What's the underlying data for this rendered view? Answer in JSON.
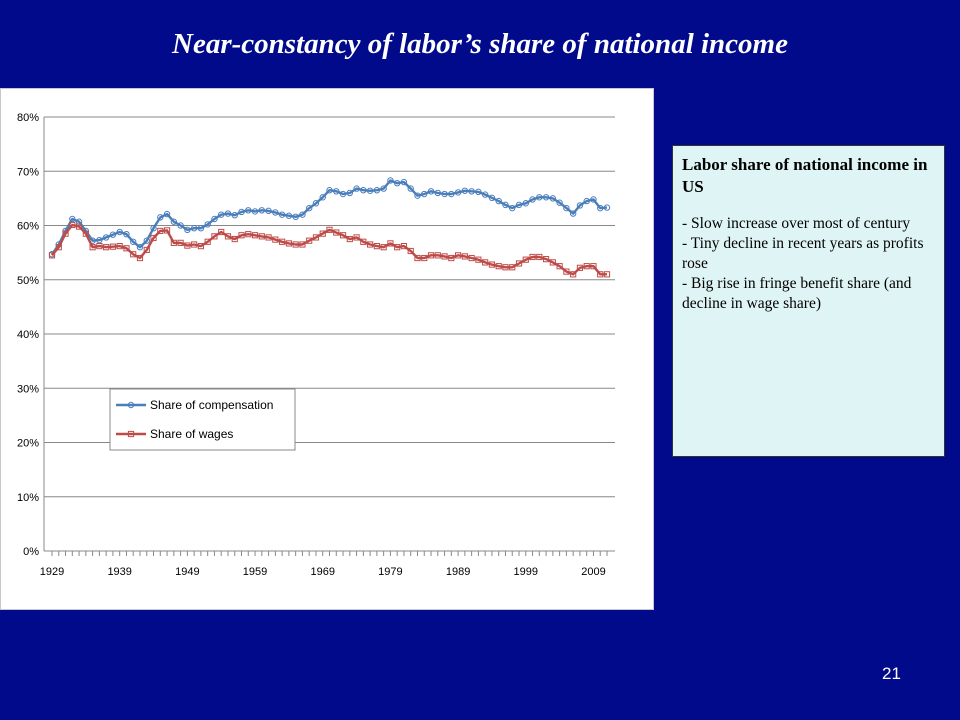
{
  "slide": {
    "title": "Near-constancy of labor’s share of national income",
    "page_number": "21"
  },
  "notes": {
    "heading": "Labor share of national income in US",
    "items": [
      "- Slow increase over most of century",
      "- Tiny decline in recent years as profits rose",
      "- Big rise in fringe benefit share (and decline in wage share)"
    ]
  },
  "chart_data": {
    "type": "line",
    "title": "",
    "xlabel": "",
    "ylabel": "",
    "x": [
      1929,
      1930,
      1931,
      1932,
      1933,
      1934,
      1935,
      1936,
      1937,
      1938,
      1939,
      1940,
      1941,
      1942,
      1943,
      1944,
      1945,
      1946,
      1947,
      1948,
      1949,
      1950,
      1951,
      1952,
      1953,
      1954,
      1955,
      1956,
      1957,
      1958,
      1959,
      1960,
      1961,
      1962,
      1963,
      1964,
      1965,
      1966,
      1967,
      1968,
      1969,
      1970,
      1971,
      1972,
      1973,
      1974,
      1975,
      1976,
      1977,
      1978,
      1979,
      1980,
      1981,
      1982,
      1983,
      1984,
      1985,
      1986,
      1987,
      1988,
      1989,
      1990,
      1991,
      1992,
      1993,
      1994,
      1995,
      1996,
      1997,
      1998,
      1999,
      2000,
      2001,
      2002,
      2003,
      2004,
      2005,
      2006,
      2007,
      2008,
      2009,
      2010,
      2011
    ],
    "xticks": [
      1929,
      1939,
      1949,
      1959,
      1969,
      1979,
      1989,
      1999,
      2009
    ],
    "xtick_labels": [
      "1929",
      "1939",
      "1949",
      "1959",
      "1969",
      "1979",
      "1989",
      "1999",
      "2009"
    ],
    "ylim": [
      0,
      0.8
    ],
    "yticks": [
      0,
      0.1,
      0.2,
      0.3,
      0.4,
      0.5,
      0.6,
      0.7,
      0.8
    ],
    "ytick_labels": [
      "0%",
      "10%",
      "20%",
      "30%",
      "40%",
      "50%",
      "60%",
      "70%",
      "80%"
    ],
    "grid": true,
    "legend": "lower-left",
    "series": [
      {
        "name": "Share of compensation",
        "color": "#4a7ebb",
        "marker": "circle",
        "values": [
          0.547,
          0.565,
          0.59,
          0.612,
          0.607,
          0.59,
          0.572,
          0.573,
          0.578,
          0.583,
          0.588,
          0.584,
          0.57,
          0.56,
          0.572,
          0.595,
          0.615,
          0.621,
          0.607,
          0.6,
          0.592,
          0.595,
          0.595,
          0.602,
          0.612,
          0.62,
          0.622,
          0.619,
          0.625,
          0.628,
          0.626,
          0.628,
          0.627,
          0.624,
          0.62,
          0.618,
          0.616,
          0.62,
          0.632,
          0.641,
          0.652,
          0.665,
          0.663,
          0.658,
          0.66,
          0.668,
          0.665,
          0.664,
          0.665,
          0.668,
          0.683,
          0.678,
          0.68,
          0.668,
          0.655,
          0.658,
          0.663,
          0.66,
          0.658,
          0.658,
          0.661,
          0.664,
          0.663,
          0.662,
          0.657,
          0.651,
          0.645,
          0.638,
          0.632,
          0.638,
          0.641,
          0.648,
          0.652,
          0.652,
          0.65,
          0.642,
          0.632,
          0.622,
          0.637,
          0.645,
          0.648,
          0.632,
          0.633
        ]
      },
      {
        "name": "Share of wages",
        "color": "#be4b48",
        "marker": "square",
        "values": [
          0.545,
          0.56,
          0.585,
          0.601,
          0.598,
          0.585,
          0.56,
          0.562,
          0.56,
          0.561,
          0.562,
          0.558,
          0.547,
          0.54,
          0.555,
          0.577,
          0.59,
          0.591,
          0.568,
          0.568,
          0.563,
          0.565,
          0.562,
          0.57,
          0.58,
          0.588,
          0.58,
          0.575,
          0.582,
          0.584,
          0.582,
          0.58,
          0.578,
          0.574,
          0.57,
          0.567,
          0.565,
          0.565,
          0.572,
          0.578,
          0.585,
          0.592,
          0.587,
          0.582,
          0.575,
          0.578,
          0.57,
          0.565,
          0.562,
          0.56,
          0.567,
          0.56,
          0.562,
          0.553,
          0.54,
          0.54,
          0.545,
          0.545,
          0.543,
          0.54,
          0.545,
          0.543,
          0.54,
          0.537,
          0.532,
          0.528,
          0.525,
          0.523,
          0.523,
          0.53,
          0.537,
          0.542,
          0.542,
          0.538,
          0.532,
          0.525,
          0.515,
          0.51,
          0.522,
          0.525,
          0.525,
          0.51,
          0.51
        ]
      }
    ]
  }
}
